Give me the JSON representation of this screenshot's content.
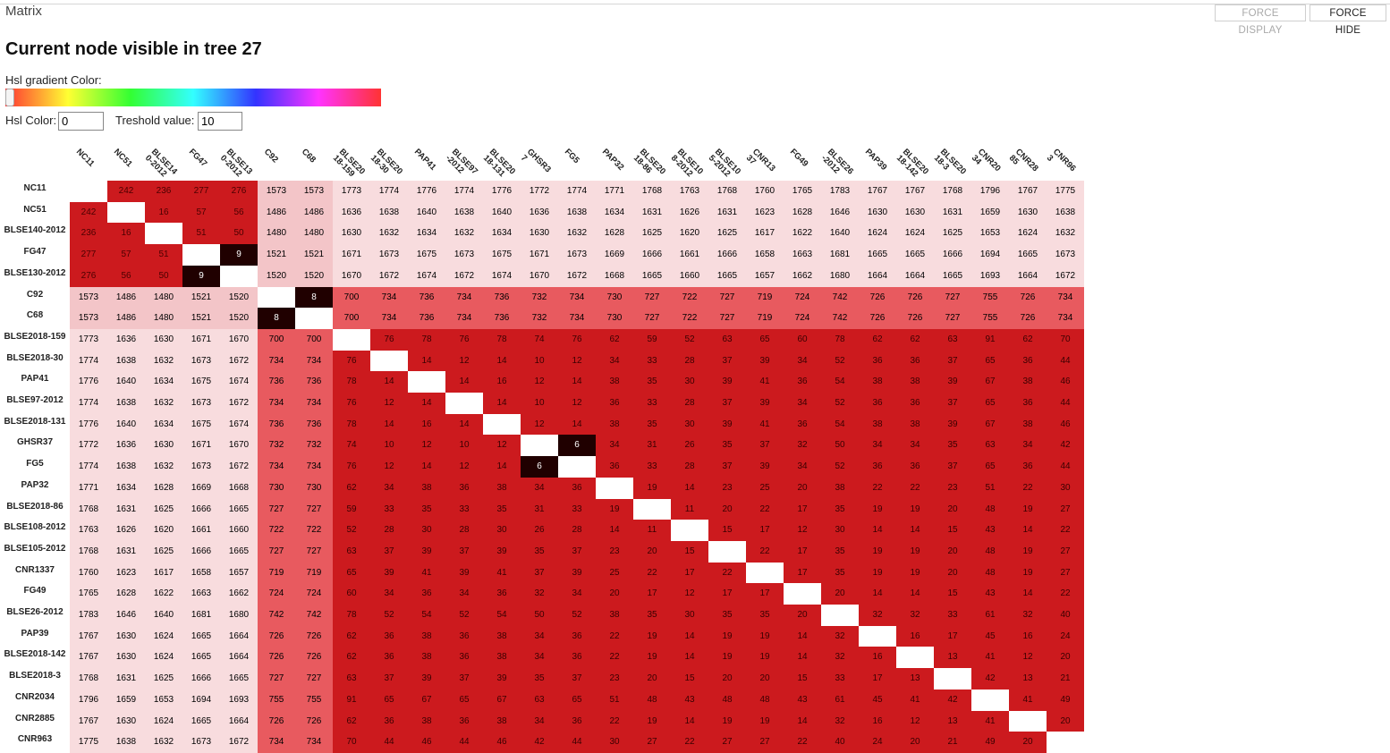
{
  "window": {
    "title": "Matrix",
    "buttons": {
      "force_display": "FORCE DISPLAY",
      "force_hide": "FORCE HIDE"
    }
  },
  "heading": "Current node visible in tree 27",
  "controls": {
    "gradient_label": "Hsl gradient Color:",
    "hsl_label": "Hsl Color:",
    "hsl_value": "0",
    "threshold_label": "Treshold value:",
    "threshold_value": "10"
  },
  "matrix": {
    "column_headers": [
      "NC11",
      "NC51",
      "BLSE14\n0-2012",
      "FG47",
      "BLSE13\n0-2012",
      "C92",
      "C68",
      "BLSE20\n18-159",
      "BLSE20\n18-30",
      "PAP41",
      "BLSE97\n-2012",
      "BLSE20\n18-131",
      "GHSR3\n7",
      "FG5",
      "PAP32",
      "BLSE20\n18-86",
      "BLSE10\n8-2012",
      "BLSE10\n5-2012",
      "CNR13\n37",
      "FG49",
      "BLSE26\n-2012",
      "PAP39",
      "BLSE20\n18-142",
      "BLSE20\n18-3",
      "CNR20\n34",
      "CNR28\n85",
      "CNR96\n3"
    ],
    "row_headers": [
      "NC11",
      "NC51",
      "BLSE140-2012",
      "FG47",
      "BLSE130-2012",
      "C92",
      "C68",
      "BLSE2018-159",
      "BLSE2018-30",
      "PAP41",
      "BLSE97-2012",
      "BLSE2018-131",
      "GHSR37",
      "FG5",
      "PAP32",
      "BLSE2018-86",
      "BLSE108-2012",
      "BLSE105-2012",
      "CNR1337",
      "FG49",
      "BLSE26-2012",
      "PAP39",
      "BLSE2018-142",
      "BLSE2018-3",
      "CNR2034",
      "CNR2885",
      "CNR963"
    ],
    "rows": [
      [
        "",
        242,
        236,
        277,
        276,
        1573,
        1573,
        1773,
        1774,
        1776,
        1774,
        1776,
        1772,
        1774,
        1771,
        1768,
        1763,
        1768,
        1760,
        1765,
        1783,
        1767,
        1767,
        1768,
        1796,
        1767,
        1775
      ],
      [
        242,
        "",
        16,
        57,
        56,
        1486,
        1486,
        1636,
        1638,
        1640,
        1638,
        1640,
        1636,
        1638,
        1634,
        1631,
        1626,
        1631,
        1623,
        1628,
        1646,
        1630,
        1630,
        1631,
        1659,
        1630,
        1638
      ],
      [
        236,
        16,
        "",
        51,
        50,
        1480,
        1480,
        1630,
        1632,
        1634,
        1632,
        1634,
        1630,
        1632,
        1628,
        1625,
        1620,
        1625,
        1617,
        1622,
        1640,
        1624,
        1624,
        1625,
        1653,
        1624,
        1632
      ],
      [
        277,
        57,
        51,
        "",
        9,
        1521,
        1521,
        1671,
        1673,
        1675,
        1673,
        1675,
        1671,
        1673,
        1669,
        1666,
        1661,
        1666,
        1658,
        1663,
        1681,
        1665,
        1665,
        1666,
        1694,
        1665,
        1673
      ],
      [
        276,
        56,
        50,
        9,
        "",
        1520,
        1520,
        1670,
        1672,
        1674,
        1672,
        1674,
        1670,
        1672,
        1668,
        1665,
        1660,
        1665,
        1657,
        1662,
        1680,
        1664,
        1664,
        1665,
        1693,
        1664,
        1672
      ],
      [
        1573,
        1486,
        1480,
        1521,
        1520,
        "",
        8,
        700,
        734,
        736,
        734,
        736,
        732,
        734,
        730,
        727,
        722,
        727,
        719,
        724,
        742,
        726,
        726,
        727,
        755,
        726,
        734
      ],
      [
        1573,
        1486,
        1480,
        1521,
        1520,
        8,
        "",
        700,
        734,
        736,
        734,
        736,
        732,
        734,
        730,
        727,
        722,
        727,
        719,
        724,
        742,
        726,
        726,
        727,
        755,
        726,
        734
      ],
      [
        1773,
        1636,
        1630,
        1671,
        1670,
        700,
        700,
        "",
        76,
        78,
        76,
        78,
        74,
        76,
        62,
        59,
        52,
        63,
        65,
        60,
        78,
        62,
        62,
        63,
        91,
        62,
        70
      ],
      [
        1774,
        1638,
        1632,
        1673,
        1672,
        734,
        734,
        76,
        "",
        14,
        12,
        14,
        10,
        12,
        34,
        33,
        28,
        37,
        39,
        34,
        52,
        36,
        36,
        37,
        65,
        36,
        44
      ],
      [
        1776,
        1640,
        1634,
        1675,
        1674,
        736,
        736,
        78,
        14,
        "",
        14,
        16,
        12,
        14,
        38,
        35,
        30,
        39,
        41,
        36,
        54,
        38,
        38,
        39,
        67,
        38,
        46
      ],
      [
        1774,
        1638,
        1632,
        1673,
        1672,
        734,
        734,
        76,
        12,
        14,
        "",
        14,
        10,
        12,
        36,
        33,
        28,
        37,
        39,
        34,
        52,
        36,
        36,
        37,
        65,
        36,
        44
      ],
      [
        1776,
        1640,
        1634,
        1675,
        1674,
        736,
        736,
        78,
        14,
        16,
        14,
        "",
        12,
        14,
        38,
        35,
        30,
        39,
        41,
        36,
        54,
        38,
        38,
        39,
        67,
        38,
        46
      ],
      [
        1772,
        1636,
        1630,
        1671,
        1670,
        732,
        732,
        74,
        10,
        12,
        10,
        12,
        "",
        6,
        34,
        31,
        26,
        35,
        37,
        32,
        50,
        34,
        34,
        35,
        63,
        34,
        42
      ],
      [
        1774,
        1638,
        1632,
        1673,
        1672,
        734,
        734,
        76,
        12,
        14,
        12,
        14,
        6,
        "",
        36,
        33,
        28,
        37,
        39,
        34,
        52,
        36,
        36,
        37,
        65,
        36,
        44
      ],
      [
        1771,
        1634,
        1628,
        1669,
        1668,
        730,
        730,
        62,
        34,
        38,
        36,
        38,
        34,
        36,
        "",
        19,
        14,
        23,
        25,
        20,
        38,
        22,
        22,
        23,
        51,
        22,
        30
      ],
      [
        1768,
        1631,
        1625,
        1666,
        1665,
        727,
        727,
        59,
        33,
        35,
        33,
        35,
        31,
        33,
        19,
        "",
        11,
        20,
        22,
        17,
        35,
        19,
        19,
        20,
        48,
        19,
        27
      ],
      [
        1763,
        1626,
        1620,
        1661,
        1660,
        722,
        722,
        52,
        28,
        30,
        28,
        30,
        26,
        28,
        14,
        11,
        "",
        15,
        17,
        12,
        30,
        14,
        14,
        15,
        43,
        14,
        22
      ],
      [
        1768,
        1631,
        1625,
        1666,
        1665,
        727,
        727,
        63,
        37,
        39,
        37,
        39,
        35,
        37,
        23,
        20,
        15,
        "",
        22,
        17,
        35,
        19,
        19,
        20,
        48,
        19,
        27
      ],
      [
        1760,
        1623,
        1617,
        1658,
        1657,
        719,
        719,
        65,
        39,
        41,
        39,
        41,
        37,
        39,
        25,
        22,
        17,
        22,
        "",
        17,
        35,
        19,
        19,
        20,
        48,
        19,
        27
      ],
      [
        1765,
        1628,
        1622,
        1663,
        1662,
        724,
        724,
        60,
        34,
        36,
        34,
        36,
        32,
        34,
        20,
        17,
        12,
        17,
        17,
        "",
        20,
        14,
        14,
        15,
        43,
        14,
        22
      ],
      [
        1783,
        1646,
        1640,
        1681,
        1680,
        742,
        742,
        78,
        52,
        54,
        52,
        54,
        50,
        52,
        38,
        35,
        30,
        35,
        35,
        20,
        "",
        32,
        32,
        33,
        61,
        32,
        40
      ],
      [
        1767,
        1630,
        1624,
        1665,
        1664,
        726,
        726,
        62,
        36,
        38,
        36,
        38,
        34,
        36,
        22,
        19,
        14,
        19,
        19,
        14,
        32,
        "",
        16,
        17,
        45,
        16,
        24
      ],
      [
        1767,
        1630,
        1624,
        1665,
        1664,
        726,
        726,
        62,
        36,
        38,
        36,
        38,
        34,
        36,
        22,
        19,
        14,
        19,
        19,
        14,
        32,
        16,
        "",
        13,
        41,
        12,
        20
      ],
      [
        1768,
        1631,
        1625,
        1666,
        1665,
        727,
        727,
        63,
        37,
        39,
        37,
        39,
        35,
        37,
        23,
        20,
        15,
        20,
        20,
        15,
        33,
        17,
        13,
        "",
        42,
        13,
        21
      ],
      [
        1796,
        1659,
        1653,
        1694,
        1693,
        755,
        755,
        91,
        65,
        67,
        65,
        67,
        63,
        65,
        51,
        48,
        43,
        48,
        48,
        43,
        61,
        45,
        41,
        42,
        "",
        41,
        49
      ],
      [
        1767,
        1630,
        1624,
        1665,
        1664,
        726,
        726,
        62,
        36,
        38,
        36,
        38,
        34,
        36,
        22,
        19,
        14,
        19,
        19,
        14,
        32,
        16,
        12,
        13,
        41,
        "",
        20
      ],
      [
        1775,
        1638,
        1632,
        1673,
        1672,
        734,
        734,
        70,
        44,
        46,
        44,
        46,
        42,
        44,
        30,
        27,
        22,
        27,
        27,
        22,
        40,
        24,
        20,
        21,
        49,
        20,
        ""
      ]
    ],
    "colors": {
      "group_far": "#f8dcde",
      "group_far_inner": "#f3c5c8",
      "group_mid": "#e85a5f",
      "group_near": "#cc1a1e",
      "below_threshold": "#200000",
      "diagonal": "#ffffff"
    }
  }
}
